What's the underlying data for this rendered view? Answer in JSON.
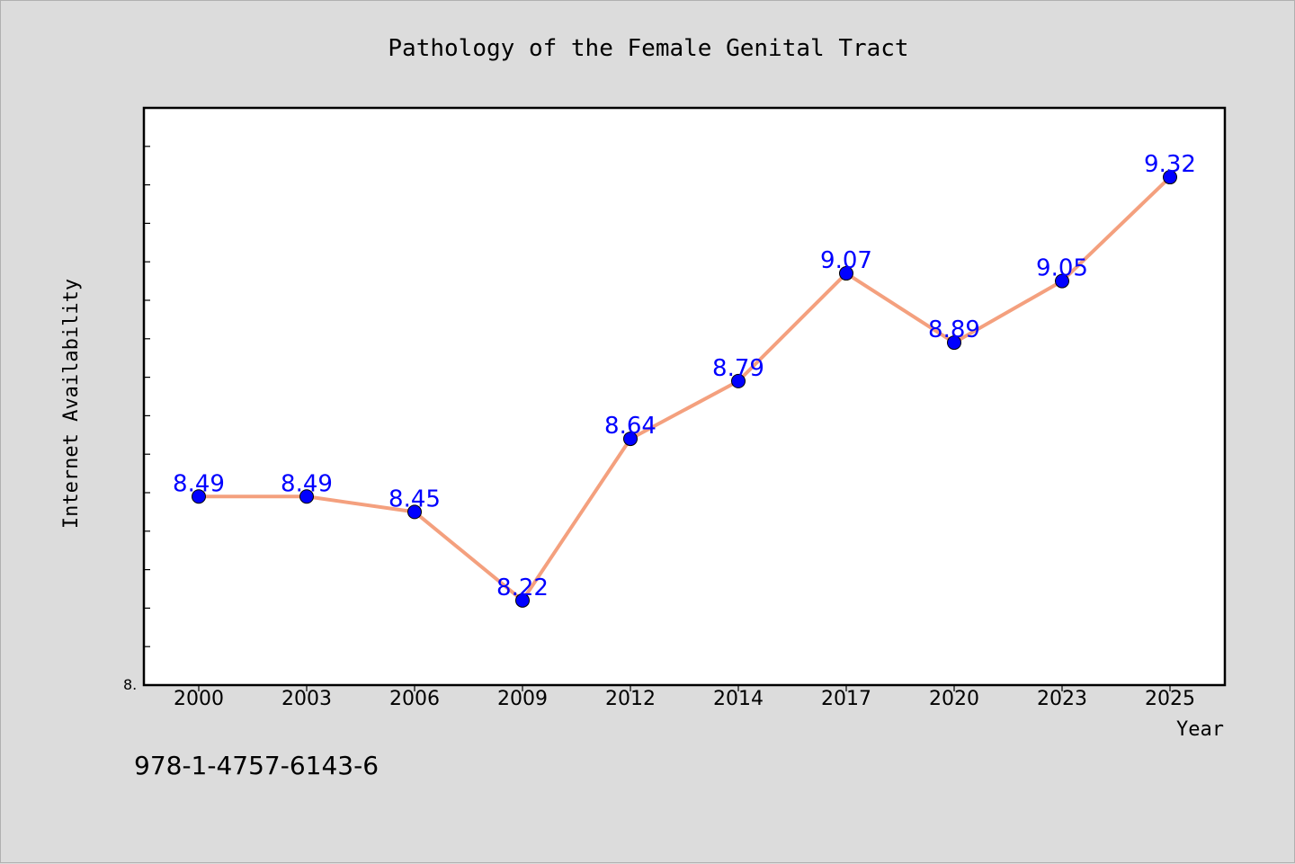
{
  "footer": {
    "code": "978-1-4757-6143-6"
  },
  "chart_data": {
    "type": "line",
    "title": "Pathology of the Female Genital Tract",
    "xlabel": "Year",
    "ylabel": "Internet Availability",
    "categories": [
      "2000",
      "2003",
      "2006",
      "2009",
      "2012",
      "2014",
      "2017",
      "2020",
      "2023",
      "2025"
    ],
    "series": [
      {
        "values": [
          8.49,
          8.49,
          8.45,
          8.22,
          8.64,
          8.79,
          9.07,
          8.89,
          9.05,
          9.32
        ]
      }
    ],
    "data_labels": [
      "8.49",
      "8.49",
      "8.45",
      "8.22",
      "8.64",
      "8.79",
      "9.07",
      "8.89",
      "9.05",
      "9.32"
    ],
    "y_tick_labels": [
      "8."
    ],
    "ylim": [
      8.0,
      9.5
    ],
    "grid": false,
    "legend": "none",
    "line_color": "#f4a07e",
    "marker_color": "#0000ff",
    "label_color": "#0000ff"
  }
}
